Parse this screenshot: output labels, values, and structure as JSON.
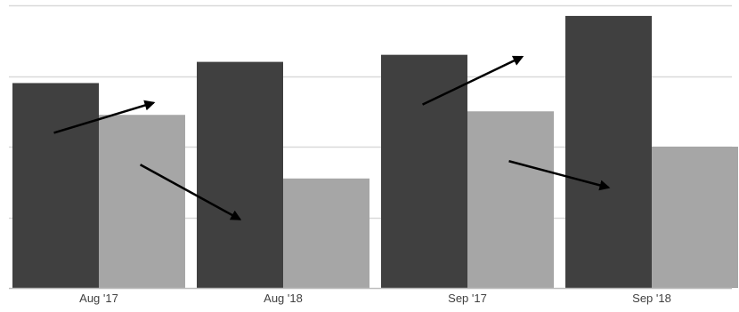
{
  "chart_data": {
    "type": "bar",
    "title": "",
    "xlabel": "",
    "ylabel": "",
    "categories": [
      "Aug '17",
      "Aug '18",
      "Sep '17",
      "Sep '18"
    ],
    "series": [
      {
        "color": "#404040",
        "values": [
          29,
          32,
          33,
          38.5
        ]
      },
      {
        "color": "#a6a6a6",
        "values": [
          24.5,
          15.5,
          25,
          20
        ]
      }
    ],
    "ylim": [
      0,
      40
    ],
    "yticks": [
      0,
      10,
      20,
      30,
      40
    ],
    "grid": true,
    "legend": "none",
    "arrow_color": "#000000",
    "trend_arrows": [
      {
        "from_category": 0,
        "to_category": 1,
        "series": 0
      },
      {
        "from_category": 0,
        "to_category": 1,
        "series": 1
      },
      {
        "from_category": 2,
        "to_category": 3,
        "series": 0
      },
      {
        "from_category": 2,
        "to_category": 3,
        "series": 1
      }
    ]
  }
}
